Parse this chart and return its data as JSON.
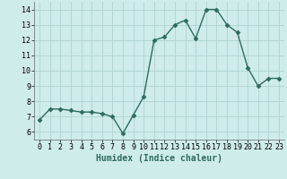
{
  "x": [
    0,
    1,
    2,
    3,
    4,
    5,
    6,
    7,
    8,
    9,
    10,
    11,
    12,
    13,
    14,
    15,
    16,
    17,
    18,
    19,
    20,
    21,
    22,
    23
  ],
  "y": [
    6.8,
    7.5,
    7.5,
    7.4,
    7.3,
    7.3,
    7.2,
    7.0,
    5.9,
    7.1,
    8.3,
    12.0,
    12.2,
    13.0,
    13.3,
    12.1,
    14.0,
    14.0,
    13.0,
    12.5,
    10.2,
    9.0,
    9.5,
    9.5
  ],
  "xlabel": "Humidex (Indice chaleur)",
  "xlim": [
    -0.5,
    23.5
  ],
  "ylim": [
    5.5,
    14.5
  ],
  "yticks": [
    6,
    7,
    8,
    9,
    10,
    11,
    12,
    13,
    14
  ],
  "xticks": [
    0,
    1,
    2,
    3,
    4,
    5,
    6,
    7,
    8,
    9,
    10,
    11,
    12,
    13,
    14,
    15,
    16,
    17,
    18,
    19,
    20,
    21,
    22,
    23
  ],
  "line_color": "#2e6b5e",
  "marker_color": "#2e6b5e",
  "bg_color": "#ceecea",
  "grid_color": "#aed4d0",
  "xlabel_fontsize": 7,
  "tick_fontsize": 6,
  "line_width": 1.0,
  "marker_size": 2.5
}
